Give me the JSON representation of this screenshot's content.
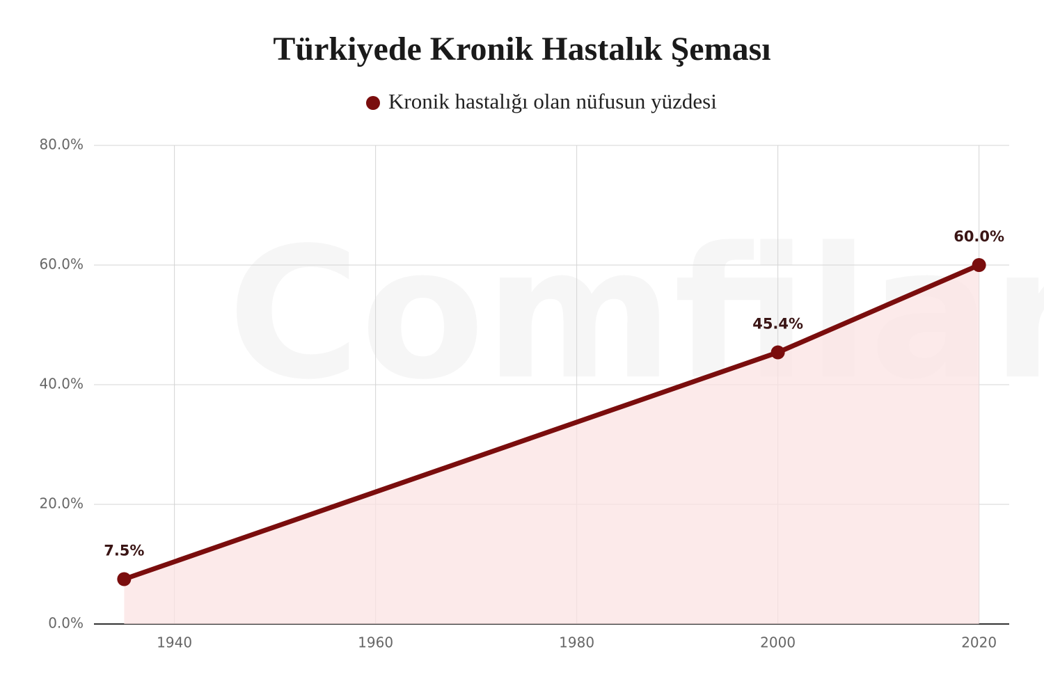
{
  "chart_data": {
    "type": "line",
    "title": "Türkiyede Kronik Hastalık Şeması",
    "watermark": "Comfilar",
    "x": [
      1935,
      2000,
      2020
    ],
    "series": [
      {
        "name": "Kronik hastalığı olan nüfusun yüzdesi",
        "color": "#7a0d0d",
        "area_color": "#fbe3e3",
        "values": [
          7.5,
          45.4,
          60.0
        ],
        "value_labels": [
          "7.5%",
          "45.4%",
          "60.0%"
        ]
      }
    ],
    "xlim": [
      1932,
      2023
    ],
    "xticks": [
      1940,
      1960,
      1980,
      2000,
      2020
    ],
    "ylim": [
      0,
      80
    ],
    "yticks": [
      {
        "value": 0,
        "label": "0.0%"
      },
      {
        "value": 20,
        "label": "20.0%"
      },
      {
        "value": 40,
        "label": "40.0%"
      },
      {
        "value": 60,
        "label": "60.0%"
      },
      {
        "value": 80,
        "label": "80.0%"
      }
    ],
    "grid": true,
    "legend": "top"
  }
}
